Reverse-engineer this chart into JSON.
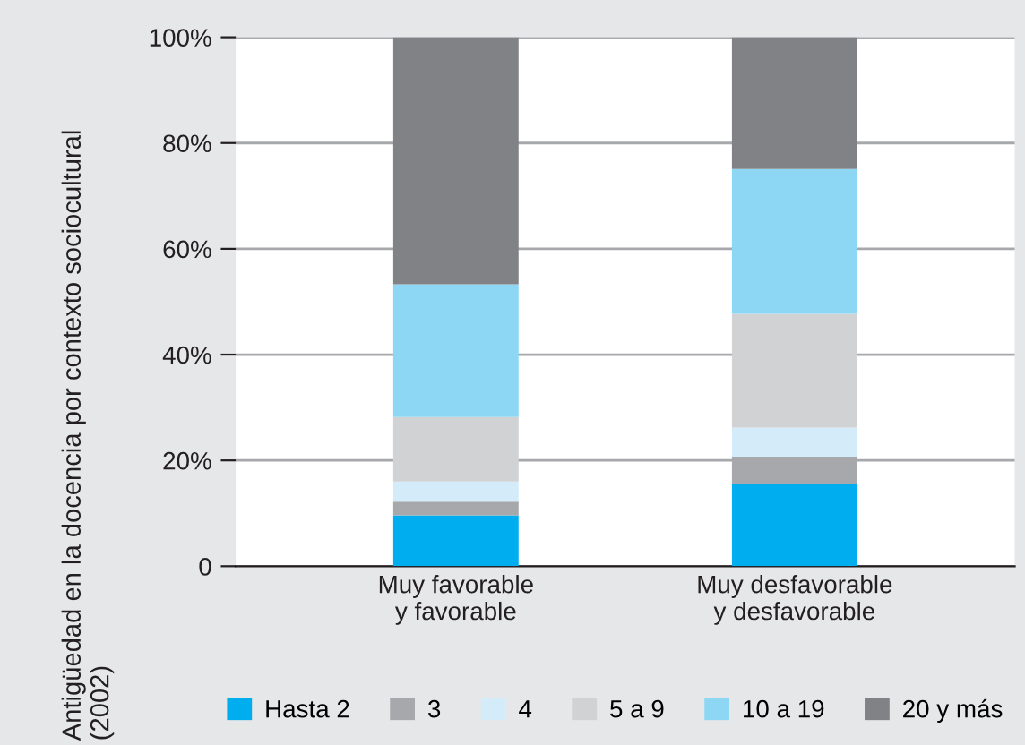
{
  "chart_data": {
    "type": "bar",
    "stacked": true,
    "ylabel": "Antigüedad en la docencia por contexto sociocultural\n(2002)",
    "categories": [
      "Muy favorable\ny favorable",
      "Muy desfavorable\ny desfavorable"
    ],
    "series": [
      {
        "name": "Hasta 2",
        "color": "#00aeef",
        "values": [
          9.6,
          15.6
        ]
      },
      {
        "name": "3",
        "color": "#a7a8ab",
        "values": [
          2.6,
          5.1
        ]
      },
      {
        "name": "4",
        "color": "#d4ecf9",
        "values": [
          3.8,
          5.5
        ]
      },
      {
        "name": "5 a 9",
        "color": "#d1d2d4",
        "values": [
          12.2,
          21.5
        ]
      },
      {
        "name": "10 a 19",
        "color": "#8dd7f5",
        "values": [
          25.1,
          27.4
        ]
      },
      {
        "name": "20 y más",
        "color": "#808285",
        "values": [
          46.7,
          24.9
        ]
      }
    ],
    "ylim": [
      0,
      100
    ],
    "yticks": [
      0,
      {
        "value": 20,
        "label": "20%"
      },
      {
        "value": 40,
        "label": "40%"
      },
      {
        "value": 60,
        "label": "60%"
      },
      {
        "value": 80,
        "label": "80%"
      },
      {
        "value": 100,
        "label": "100%"
      }
    ],
    "grid": "y",
    "legend": "bottom"
  }
}
